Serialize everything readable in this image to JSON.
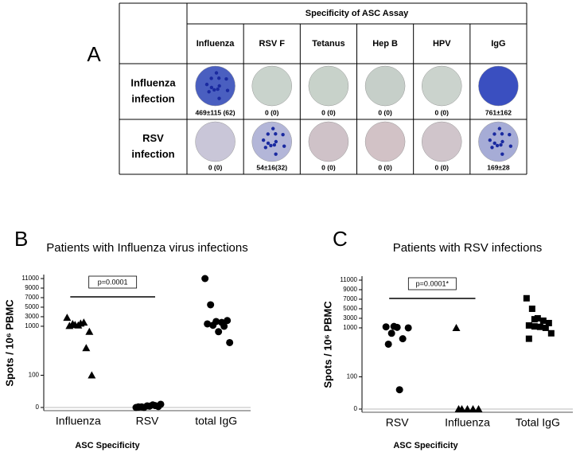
{
  "panel_a": {
    "label": "A",
    "header": "Specificity of ASC Assay",
    "columns": [
      "Influenza",
      "RSV F",
      "Tetanus",
      "Hep B",
      "HPV",
      "IgG"
    ],
    "rows": [
      {
        "label": [
          "Influenza",
          "infection"
        ],
        "cells": [
          "469±115 (62)",
          "0 (0)",
          "0 (0)",
          "0 (0)",
          "0 (0)",
          "761±162"
        ]
      },
      {
        "label": [
          "RSV",
          "infection"
        ],
        "cells": [
          "0 (0)",
          "54±16(32)",
          "0 (0)",
          "0 (0)",
          "0 (0)",
          "169±28"
        ]
      }
    ]
  },
  "chart_data": [
    {
      "type": "scatter",
      "panel": "B",
      "title": "Patients with Influenza virus infections",
      "ylabel": "Spots / 10⁶ PBMC",
      "xlabel": "ASC Specificity",
      "ylim": [
        0,
        11000
      ],
      "scale_breaks": [
        100,
        1000
      ],
      "yticks": [
        0,
        100,
        1000,
        3000,
        5000,
        7000,
        9000,
        11000
      ],
      "annotation": "p=0.0001",
      "series": [
        {
          "name": "Influenza",
          "marker": "triangle",
          "color": "#000000",
          "values": [
            2800,
            1500,
            1200,
            1800,
            900,
            1100,
            1300,
            1600,
            600,
            100
          ]
        },
        {
          "name": "RSV",
          "marker": "circle",
          "color": "#000000",
          "values": [
            0,
            2,
            5,
            8,
            3,
            1,
            0,
            4,
            6,
            10,
            2
          ]
        },
        {
          "name": "total IgG",
          "marker": "circle",
          "color": "#000000",
          "values": [
            11000,
            5500,
            2000,
            1800,
            2200,
            1500,
            1200,
            900,
            1000,
            700
          ]
        }
      ]
    },
    {
      "type": "scatter",
      "panel": "C",
      "title": "Patients with RSV infections",
      "ylabel": "Spots / 10⁶ PBMC",
      "xlabel": "ASC Specificity",
      "ylim": [
        0,
        11000
      ],
      "scale_breaks": [
        100,
        1000
      ],
      "yticks": [
        0,
        100,
        1000,
        3000,
        5000,
        7000,
        9000,
        11000
      ],
      "annotation": "p=0.0001*",
      "series": [
        {
          "name": "RSV",
          "marker": "circle",
          "color": "#000000",
          "values": [
            1200,
            900,
            1100,
            800,
            1000,
            700,
            1300,
            60
          ]
        },
        {
          "name": "Influenza",
          "marker": "triangle",
          "color": "#000000",
          "values": [
            1000,
            0,
            0,
            0,
            0,
            0
          ]
        },
        {
          "name": "Total IgG",
          "marker": "square",
          "color": "#000000",
          "values": [
            7200,
            5000,
            3000,
            2500,
            2000,
            1500,
            1300,
            1200,
            1000,
            900,
            800,
            2800
          ]
        }
      ]
    }
  ]
}
